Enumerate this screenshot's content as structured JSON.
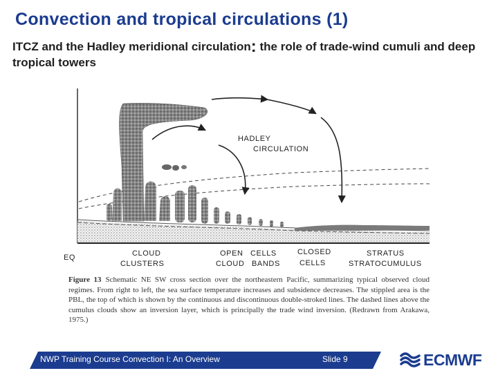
{
  "slide": {
    "title": "Convection and tropical circulations (1)",
    "subtitle_part1": "ITCZ and the Hadley meridional circulation",
    "subtitle_sep": ":",
    "subtitle_part2": " the role of trade-wind cumuli and deep tropical towers"
  },
  "figure": {
    "hadley_line1": "HADLEY",
    "hadley_line2": "CIRCULATION",
    "eq_label": "EQ",
    "regimes": [
      {
        "line1": "CLOUD",
        "line2": "CLUSTERS"
      },
      {
        "line1": "OPEN",
        "line2": "CLOUD"
      },
      {
        "line1": "CELLS",
        "line2": "BANDS"
      },
      {
        "line1": "CLOSED",
        "line2": "CELLS"
      },
      {
        "line1": "STRATUS",
        "line2": "STRATOCUMULUS"
      }
    ]
  },
  "caption": {
    "figure_number": "Figure 13",
    "text": "Schematic NE SW cross section over the northeastern Pacific, summarizing typical observed cloud regimes. From right to left, the sea surface temperature increases and subsidence decreases. The stippled area is the PBL, the top of which is shown by the continuous and discontinuous double-stroked lines. The dashed lines above the cumulus clouds show an inversion layer, which is principally the trade wind inversion. (Redrawn from Arakawa, 1975.)"
  },
  "footer": {
    "course": "NWP Training Course Convection I: An Overview",
    "slide_number": "Slide 9",
    "logo_text": "ECMWF",
    "bar_color": "#1b3c8f"
  }
}
